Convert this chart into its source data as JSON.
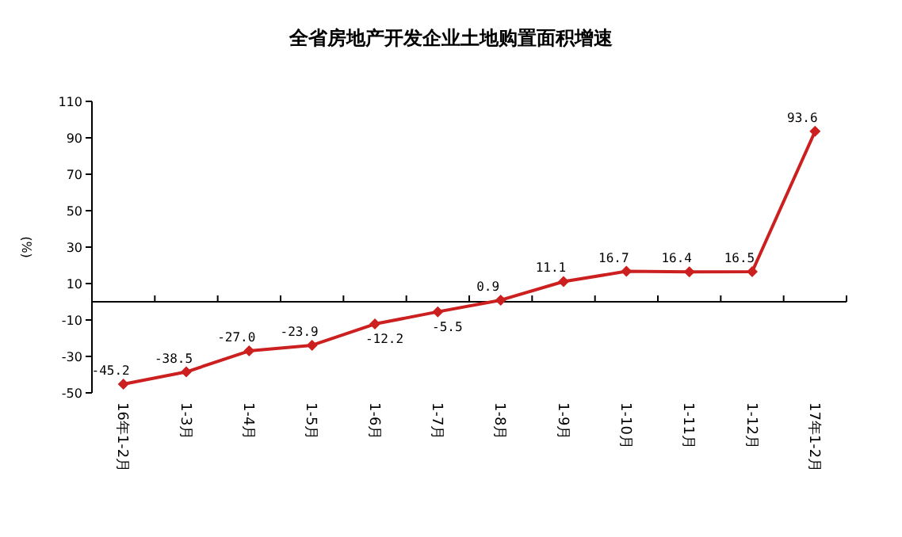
{
  "chart_data": {
    "type": "line",
    "title": "全省房地产开发企业土地购置面积增速",
    "ylabel": "(%)",
    "categories": [
      "16年1-2月",
      "1-3月",
      "1-4月",
      "1-5月",
      "1-6月",
      "1-7月",
      "1-8月",
      "1-9月",
      "1-10月",
      "1-11月",
      "1-12月",
      "17年1-2月"
    ],
    "series": [
      {
        "color": "#cc1f1f",
        "values": [
          -45.2,
          -38.5,
          -27.0,
          -23.9,
          -12.2,
          -5.5,
          0.9,
          11.1,
          16.7,
          16.4,
          16.5,
          93.6
        ],
        "value_labels": [
          "-45.2",
          "-38.5",
          "-27.0",
          "-23.9",
          "-12.2",
          "-5.5",
          "0.9",
          "11.1",
          "16.7",
          "16.4",
          "16.5",
          "93.6"
        ]
      }
    ],
    "ylim": [
      -50,
      110
    ],
    "yticks": [
      -50,
      -30,
      -10,
      10,
      30,
      50,
      70,
      90,
      110
    ],
    "marker": "diamond"
  }
}
